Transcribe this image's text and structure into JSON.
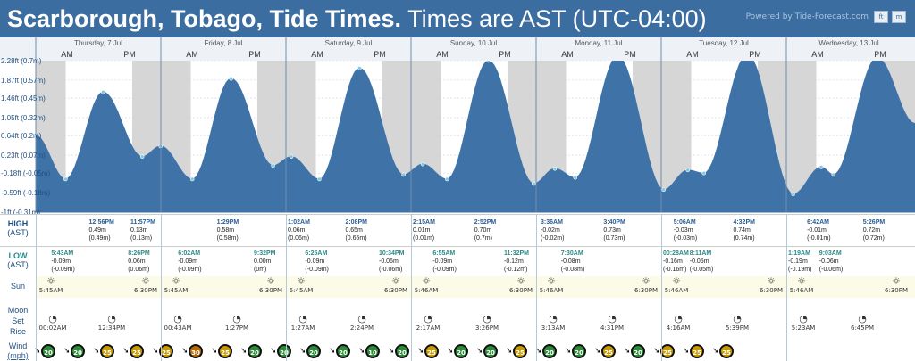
{
  "header": {
    "title_bold": "Scarborough, Tobago, Tide Times.",
    "title_rest": " Times are AST (UTC-04:00)",
    "powered": "Powered by Tide-Forecast.com",
    "units": [
      "ft",
      "m"
    ]
  },
  "y_axis_labels": [
    "2.28ft (0.7m)",
    "1.87ft (0.57m)",
    "1.46ft (0.45m)",
    "1.05ft (0.32m)",
    "0.64ft (0.2m)",
    "0.23ft (0.07m)",
    "-0.18ft (-0.05m)",
    "-0.59ft (-0.18m)",
    "-1ft (-0.31m)"
  ],
  "days": [
    "Thursday, 7 Jul",
    "Friday, 8 Jul",
    "Saturday, 9 Jul",
    "Sunday, 10 Jul",
    "Monday, 11 Jul",
    "Tuesday, 12 Jul",
    "Wednesday, 13 Jul"
  ],
  "ampm": [
    "AM",
    "PM"
  ],
  "high": {
    "label": "HIGH",
    "tz": "(AST)",
    "entries": [
      {
        "time": "12:56PM",
        "ft": "0.49m",
        "m": "(0.49m)"
      },
      {
        "time": "11:57PM",
        "ft": "0.13m",
        "m": "(0.13m)"
      },
      {
        "time": "1:29PM",
        "ft": "0.58m",
        "m": "(0.58m)"
      },
      {
        "time": "1:02AM",
        "ft": "0.06m",
        "m": "(0.06m)"
      },
      {
        "time": "2:08PM",
        "ft": "0.65m",
        "m": "(0.65m)"
      },
      {
        "time": "2:15AM",
        "ft": "0.01m",
        "m": "(0.01m)"
      },
      {
        "time": "2:52PM",
        "ft": "0.70m",
        "m": "(0.7m)"
      },
      {
        "time": "3:36AM",
        "ft": "-0.02m",
        "m": "(-0.02m)"
      },
      {
        "time": "3:40PM",
        "ft": "0.73m",
        "m": "(0.73m)"
      },
      {
        "time": "5:06AM",
        "ft": "-0.03m",
        "m": "(-0.03m)"
      },
      {
        "time": "4:32PM",
        "ft": "0.74m",
        "m": "(0.74m)"
      },
      {
        "time": "6:42AM",
        "ft": "-0.01m",
        "m": "(-0.01m)"
      },
      {
        "time": "5:26PM",
        "ft": "0.72m",
        "m": "(0.72m)"
      }
    ]
  },
  "low": {
    "label": "LOW",
    "tz": "(AST)",
    "entries": [
      {
        "time": "5:43AM",
        "ft": "-0.09m",
        "m": "(-0.09m)"
      },
      {
        "time": "8:26PM",
        "ft": "0.06m",
        "m": "(0.06m)"
      },
      {
        "time": "6:02AM",
        "ft": "-0.09m",
        "m": "(-0.09m)"
      },
      {
        "time": "9:32PM",
        "ft": "0.00m",
        "m": "(0m)"
      },
      {
        "time": "6:25AM",
        "ft": "-0.09m",
        "m": "(-0.09m)"
      },
      {
        "time": "10:34PM",
        "ft": "-0.06m",
        "m": "(-0.06m)"
      },
      {
        "time": "6:55AM",
        "ft": "-0.09m",
        "m": "(-0.09m)"
      },
      {
        "time": "11:32PM",
        "ft": "-0.12m",
        "m": "(-0.12m)"
      },
      {
        "time": "7:30AM",
        "ft": "-0.08m",
        "m": "(-0.08m)"
      },
      {
        "time": "00:28AM",
        "ft": "-0.16m",
        "m": "(-0.16m)"
      },
      {
        "time": "8:11AM",
        "ft": "-0.05m",
        "m": "(-0.05m)"
      },
      {
        "time": "1:19AM",
        "ft": "-0.19m",
        "m": "(-0.19m)"
      },
      {
        "time": "9:03AM",
        "ft": "-0.06m",
        "m": "(-0.06m)"
      }
    ]
  },
  "sun": {
    "label": "Sun",
    "times": [
      "5:45AM",
      "6:30PM",
      "5:45AM",
      "6:30PM",
      "5:45AM",
      "6:30PM",
      "5:46AM",
      "6:30PM",
      "5:46AM",
      "6:30PM",
      "5:46AM",
      "6:30PM",
      "5:46AM",
      "6:30PM"
    ]
  },
  "moon": {
    "label": "Moon",
    "set_label": "Set",
    "rise_label": "Rise",
    "times": [
      "00:02AM",
      "12:34PM",
      "00:43AM",
      "1:27PM",
      "1:27AM",
      "2:24PM",
      "2:17AM",
      "3:26PM",
      "3:13AM",
      "4:31PM",
      "4:16AM",
      "5:39PM",
      "5:23AM",
      "6:45PM"
    ]
  },
  "wind": {
    "label": "Wind",
    "unit": "(mph)",
    "speeds": [
      "20",
      "20",
      "25",
      "25",
      "25",
      "30",
      "25",
      "20",
      "20",
      "20",
      "20",
      "10",
      "20",
      "25",
      "20",
      "20",
      "25",
      "20",
      "20",
      "25",
      "20",
      "25",
      "25",
      "25"
    ]
  },
  "chart_data": {
    "type": "area",
    "title": "Scarborough, Tobago, Tide Times.",
    "ylabel": "",
    "ylim": [
      -0.31,
      0.7
    ],
    "x": [
      "Thu 05:43",
      "Thu 12:56",
      "Thu 20:26",
      "Thu 23:57",
      "Fri 06:02",
      "Fri 13:29",
      "Fri 21:32",
      "Sat 01:02",
      "Sat 06:25",
      "Sat 14:08",
      "Sat 22:34",
      "Sun 02:15",
      "Sun 06:55",
      "Sun 14:52",
      "Sun 23:32",
      "Mon 03:36",
      "Mon 07:30",
      "Mon 15:40",
      "Tue 00:28",
      "Tue 05:06",
      "Tue 08:11",
      "Tue 16:32",
      "Wed 01:19",
      "Wed 06:42",
      "Wed 09:03",
      "Wed 17:26"
    ],
    "series": [
      {
        "values": [
          -0.09,
          0.49,
          0.06,
          0.13,
          -0.09,
          0.58,
          0.0,
          0.06,
          -0.09,
          0.65,
          -0.06,
          0.01,
          -0.09,
          0.7,
          -0.12,
          -0.02,
          -0.08,
          0.73,
          -0.16,
          -0.03,
          -0.05,
          0.74,
          -0.19,
          -0.01,
          -0.06,
          0.72
        ]
      }
    ]
  }
}
